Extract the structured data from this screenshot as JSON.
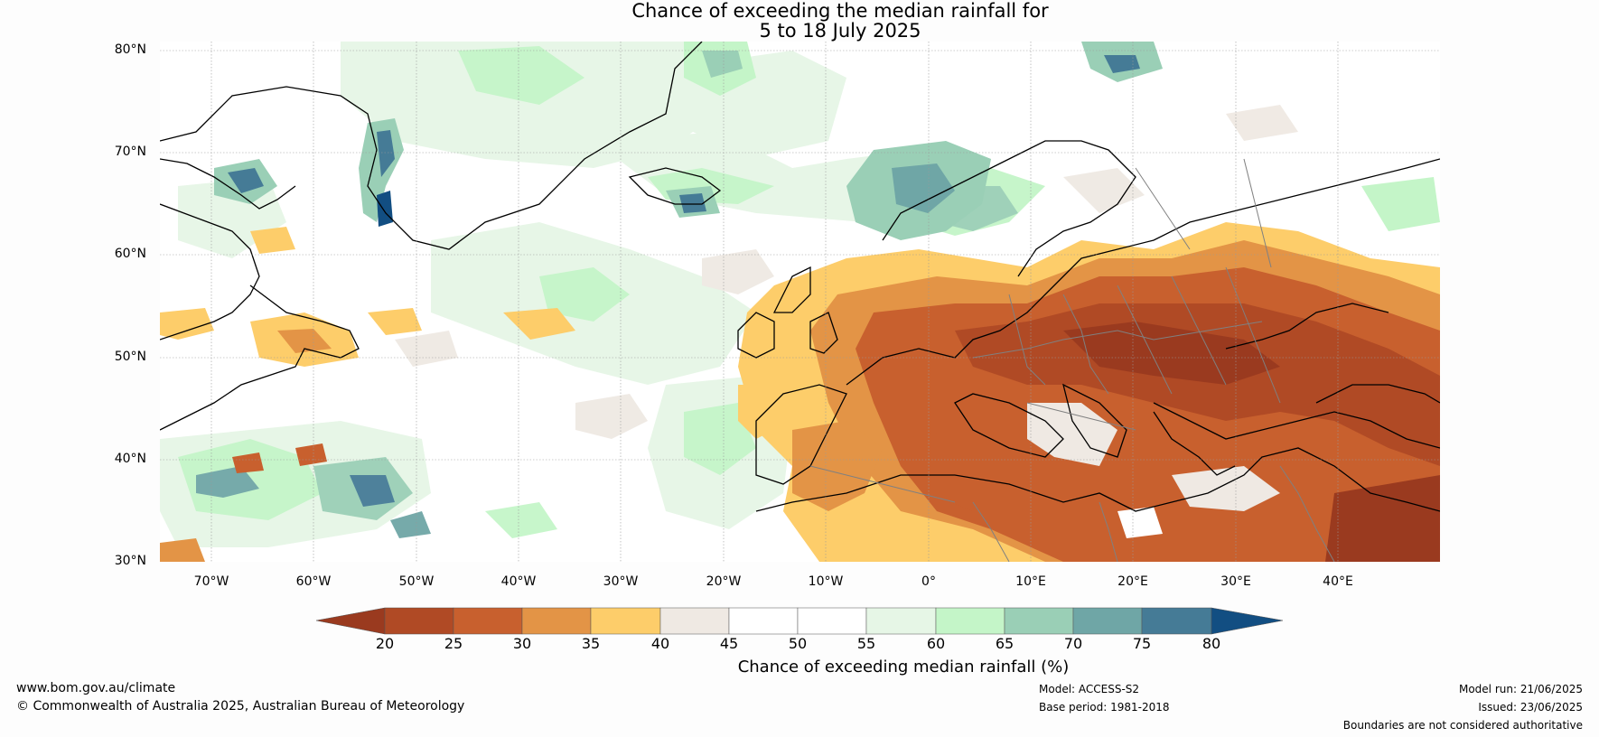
{
  "title": {
    "line1": "Chance of exceeding the median rainfall for",
    "line2": "5 to 18 July 2025"
  },
  "axes": {
    "lat_labels": [
      "80°N",
      "70°N",
      "60°N",
      "50°N",
      "40°N",
      "30°N"
    ],
    "lon_labels": [
      "70°W",
      "60°W",
      "50°W",
      "40°W",
      "30°W",
      "20°W",
      "10°W",
      "0°",
      "10°E",
      "20°E",
      "30°E",
      "40°E"
    ]
  },
  "map": {
    "region": "North Atlantic, Europe, North Africa",
    "lat_range": [
      30,
      80
    ],
    "lon_range": [
      -75,
      50
    ],
    "gridlines": true,
    "coastlines": true,
    "country_borders": true
  },
  "legend": {
    "label": "Chance of exceeding median rainfall (%)",
    "ticks": [
      "20",
      "25",
      "30",
      "35",
      "40",
      "45",
      "50",
      "55",
      "60",
      "65",
      "70",
      "75",
      "80"
    ],
    "bins": [
      {
        "range": "<20",
        "color": "#9a3a1f"
      },
      {
        "range": "20-25",
        "color": "#b04a25"
      },
      {
        "range": "25-30",
        "color": "#c8602e"
      },
      {
        "range": "30-35",
        "color": "#e39446"
      },
      {
        "range": "35-40",
        "color": "#fdcd6a"
      },
      {
        "range": "40-45",
        "color": "#efe9e3"
      },
      {
        "range": "45-50",
        "color": "#ffffff"
      },
      {
        "range": "50-55",
        "color": "#ffffff"
      },
      {
        "range": "55-60",
        "color": "#e6f6e6"
      },
      {
        "range": "60-65",
        "color": "#c4f5c8"
      },
      {
        "range": "65-70",
        "color": "#9acfb6"
      },
      {
        "range": "70-75",
        "color": "#6fa6a6"
      },
      {
        "range": "75-80",
        "color": "#457b96"
      },
      {
        "range": ">80",
        "color": "#124e82"
      }
    ]
  },
  "footer": {
    "website": "www.bom.gov.au/climate",
    "copyright": "© Commonwealth of Australia 2025, Australian Bureau of Meteorology",
    "model": "Model: ACCESS-S2",
    "base_period": "Base period: 1981-2018",
    "model_run": "Model run: 21/06/2025",
    "issued": "Issued: 23/06/2025",
    "disclaimer": "Boundaries are not considered authoritative"
  }
}
